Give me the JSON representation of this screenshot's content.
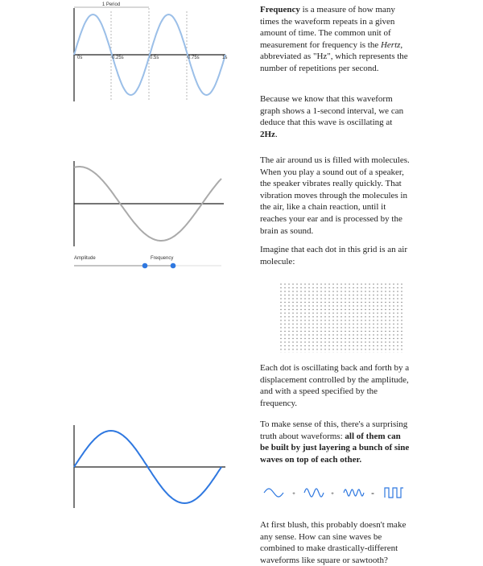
{
  "period_diagram": {
    "period_label": "1 Period",
    "tick_labels": [
      "0s",
      "0.25s",
      "0.5s",
      "0.75s",
      "1s"
    ]
  },
  "sliders": [
    "Amplitude",
    "Frequency"
  ],
  "equation_symbols": [
    "+",
    "+",
    "="
  ],
  "paragraphs": [
    [
      {
        "text": "Frequency",
        "style": "bold"
      },
      {
        "text": " is a measure of how many times the waveform repeats in a given amount of time. The common unit of measurement for frequency is the "
      },
      {
        "text": "Hertz",
        "style": "italic"
      },
      {
        "text": ", abbreviated as \"Hz\", which represents the number of repetitions per second."
      }
    ],
    [
      {
        "text": "Because we know that this waveform graph shows a 1-second interval, we can deduce that this wave is oscillating at "
      },
      {
        "text": "2Hz",
        "style": "bold"
      },
      {
        "text": "."
      }
    ],
    [
      {
        "text": "The air around us is filled with molecules. When you play a sound out of a speaker, the speaker vibrates really quickly. That vibration moves through the molecules in the air, like a chain reaction, until it reaches your ear and is processed by the brain as sound."
      }
    ],
    [
      {
        "text": "Imagine that each dot in this grid is an air molecule:"
      }
    ],
    [
      {
        "text": "Each dot is oscillating back and forth by a displacement controlled by the amplitude, and with a speed specified by the frequency."
      }
    ],
    [
      {
        "text": "To make sense of this, there's a surprising truth about waveforms: "
      },
      {
        "text": "all of them can be built by just layering a bunch of sine waves on top of each other.",
        "style": "bold"
      }
    ],
    [
      {
        "text": "At first blush, this probably doesn't make any sense. How can sine waves be combined to make drastically-different waveforms like square or sawtooth?"
      }
    ]
  ]
}
